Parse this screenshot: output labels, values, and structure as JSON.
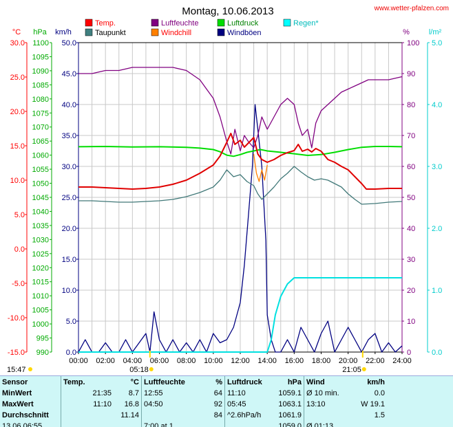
{
  "site": "www.wetter-pfalzen.com",
  "chart_data": {
    "type": "line",
    "title": "Montag, 10.06.2013",
    "x_labels": [
      "00:00",
      "02:00",
      "04:00",
      "06:00",
      "08:00",
      "10:00",
      "12:00",
      "14:00",
      "16:00",
      "18:00",
      "20:00",
      "22:00",
      "24:00"
    ],
    "axes": {
      "temp": {
        "unit": "°C",
        "color": "#ff0000",
        "range": [
          -15,
          30
        ],
        "ticks": [
          "30.0",
          "25.0",
          "20.0",
          "15.0",
          "10.0",
          "5.0",
          "0.0",
          "-5.0",
          "-10.0",
          "-15.0"
        ]
      },
      "pressure": {
        "unit": "hPa",
        "color": "#00aa00",
        "range": [
          990,
          1100
        ],
        "ticks": [
          "1100",
          "1095",
          "1090",
          "1085",
          "1080",
          "1075",
          "1070",
          "1065",
          "1060",
          "1055",
          "1050",
          "1045",
          "1040",
          "1035",
          "1030",
          "1025",
          "1020",
          "1015",
          "1010",
          "1005",
          "1000",
          "995",
          "990"
        ]
      },
      "wind": {
        "unit": "km/h",
        "color": "#000080",
        "range": [
          0,
          50
        ],
        "ticks": [
          "50.0",
          "45.0",
          "40.0",
          "35.0",
          "30.0",
          "25.0",
          "20.0",
          "15.0",
          "10.0",
          "5.0",
          "0.0"
        ]
      },
      "humidity": {
        "unit": "%",
        "color": "#800080",
        "range": [
          0,
          100
        ],
        "ticks": [
          "100",
          "90",
          "80",
          "70",
          "60",
          "50",
          "40",
          "30",
          "20",
          "10",
          "0"
        ]
      },
      "rain": {
        "unit": "l/m²",
        "color": "#00cccc",
        "range": [
          0,
          5
        ],
        "ticks": [
          "5.0",
          "4.0",
          "3.0",
          "2.0",
          "1.0",
          "0.0"
        ]
      }
    },
    "legend": [
      {
        "name": "Temp.",
        "color": "#ff0000",
        "label_color": "#ff0000"
      },
      {
        "name": "Luftfeuchte",
        "color": "#800080",
        "label_color": "#800080"
      },
      {
        "name": "Luftdruck",
        "color": "#00dd00",
        "label_color": "#008000"
      },
      {
        "name": "Regen*",
        "color": "#00ffff",
        "label_color": "#00bbbb"
      },
      {
        "name": "Taupunkt",
        "color": "#408080",
        "label_color": "#000000"
      },
      {
        "name": "Windchill",
        "color": "#ff8000",
        "label_color": "#ff0000"
      },
      {
        "name": "Windböen",
        "color": "#000080",
        "label_color": "#000080"
      }
    ],
    "series": [
      {
        "name": "Temp.",
        "axis": "temp",
        "color": "#e00000",
        "x": [
          0,
          1,
          2,
          3,
          4,
          5,
          6,
          7,
          8,
          9,
          10,
          10.5,
          11,
          11.3,
          11.6,
          12,
          12.3,
          12.6,
          13,
          13.3,
          13.6,
          14,
          14.5,
          15,
          15.5,
          16,
          16.3,
          16.6,
          17,
          17.3,
          17.6,
          18,
          18.5,
          19,
          19.5,
          20,
          20.5,
          21,
          21.35,
          22,
          23,
          24
        ],
        "y": [
          9.0,
          9.0,
          8.9,
          8.8,
          8.7,
          8.8,
          9.0,
          9.4,
          10.0,
          11.0,
          12.2,
          13.5,
          15.5,
          16.8,
          15.2,
          15.8,
          14.8,
          15.4,
          16.2,
          13.8,
          13.0,
          12.6,
          13.0,
          13.6,
          14.0,
          14.3,
          15.2,
          14.2,
          14.5,
          14.1,
          14.6,
          14.2,
          13.0,
          12.6,
          12.0,
          11.5,
          10.5,
          9.5,
          8.7,
          8.7,
          8.8,
          8.8
        ]
      },
      {
        "name": "Taupunkt",
        "axis": "temp",
        "color": "#407878",
        "x": [
          0,
          1,
          2,
          3,
          4,
          5,
          6,
          7,
          8,
          9,
          10,
          10.5,
          11,
          11.5,
          12,
          12.5,
          13,
          13.3,
          13.6,
          14,
          14.5,
          15,
          15.5,
          16,
          16.5,
          17,
          17.5,
          18,
          18.5,
          19,
          19.5,
          20,
          20.5,
          21,
          22,
          23,
          24
        ],
        "y": [
          7.0,
          7.0,
          6.9,
          6.8,
          6.8,
          6.9,
          7.0,
          7.2,
          7.6,
          8.2,
          9.0,
          10.0,
          11.5,
          10.5,
          10.8,
          9.8,
          9.2,
          8.0,
          7.2,
          8.0,
          9.0,
          10.2,
          11.0,
          12.0,
          11.2,
          10.5,
          10.0,
          10.2,
          10.0,
          9.5,
          9.0,
          8.0,
          7.2,
          6.5,
          6.6,
          6.8,
          6.9
        ]
      },
      {
        "name": "Windchill",
        "axis": "temp",
        "color": "#ff8000",
        "x": [
          13.0,
          13.2,
          13.4,
          13.6,
          13.8,
          14.0
        ],
        "y": [
          13.8,
          11.0,
          9.8,
          11.5,
          10.0,
          12.2
        ]
      },
      {
        "name": "Luftfeuchte",
        "axis": "humidity",
        "color": "#800080",
        "x": [
          0,
          1,
          2,
          3,
          4,
          5,
          6,
          7,
          8,
          9,
          9.5,
          10,
          10.5,
          11,
          11.3,
          11.6,
          12,
          12.3,
          12.6,
          13,
          13.3,
          13.6,
          14,
          14.5,
          15,
          15.5,
          16,
          16.3,
          16.6,
          17,
          17.3,
          17.6,
          18,
          18.5,
          19,
          19.5,
          20,
          20.5,
          21,
          21.5,
          22,
          23,
          24
        ],
        "y": [
          90,
          90,
          91,
          91,
          92,
          92,
          92,
          92,
          91,
          88,
          85,
          82,
          76,
          68,
          64,
          72,
          65,
          70,
          68,
          66,
          70,
          76,
          72,
          76,
          80,
          82,
          80,
          74,
          70,
          72,
          66,
          74,
          78,
          80,
          82,
          84,
          85,
          86,
          87,
          88,
          88,
          88,
          89
        ]
      },
      {
        "name": "Luftdruck",
        "axis": "pressure",
        "color": "#00dd00",
        "x": [
          0,
          2,
          4,
          6,
          8,
          9,
          10,
          10.5,
          11,
          11.5,
          12,
          12.5,
          13,
          13.5,
          14,
          15,
          16,
          17,
          18,
          19,
          20,
          21,
          22,
          23,
          24
        ],
        "y": [
          1063.0,
          1063.1,
          1062.9,
          1063.0,
          1062.8,
          1062.5,
          1062.0,
          1061.2,
          1060.0,
          1059.6,
          1060.2,
          1061.0,
          1061.5,
          1062.0,
          1061.5,
          1061.0,
          1060.5,
          1059.9,
          1060.2,
          1061.0,
          1062.0,
          1062.8,
          1063.1,
          1063.1,
          1063.0
        ]
      },
      {
        "name": "Regen*",
        "axis": "rain",
        "color": "#00e0e0",
        "x": [
          0,
          14.0,
          14.3,
          14.6,
          15.0,
          15.5,
          16.0,
          17.0,
          20.0,
          24.0
        ],
        "y": [
          0,
          0,
          0.2,
          0.6,
          0.9,
          1.1,
          1.2,
          1.2,
          1.2,
          1.2
        ]
      },
      {
        "name": "Windböen",
        "axis": "wind",
        "color": "#000080",
        "x": [
          0,
          0.5,
          1,
          1.5,
          2,
          2.5,
          3,
          3.5,
          4,
          4.5,
          5,
          5.3,
          5.6,
          6,
          6.5,
          7,
          7.5,
          8,
          8.5,
          9,
          9.5,
          10,
          10.5,
          11,
          11.5,
          12,
          12.3,
          12.6,
          12.9,
          13.1,
          13.3,
          13.6,
          13.9,
          14,
          14.3,
          14.6,
          15,
          15.5,
          16,
          16.5,
          17,
          17.5,
          18,
          18.5,
          19,
          19.5,
          20,
          20.5,
          21,
          21.5,
          22,
          22.5,
          23,
          23.5,
          24
        ],
        "y": [
          0,
          2,
          0,
          0,
          1.5,
          0,
          0,
          2,
          0,
          1.5,
          3,
          0,
          6.5,
          2,
          0,
          2,
          0,
          1.5,
          0,
          2,
          0,
          3,
          1.5,
          2,
          4,
          8,
          14,
          22,
          30,
          40,
          36,
          30,
          18,
          6,
          2,
          0,
          0,
          2,
          0,
          4,
          2,
          0,
          3,
          5,
          0,
          2,
          4,
          2,
          0,
          2,
          3,
          0,
          1.5,
          0,
          1
        ]
      }
    ],
    "sun_markers": [
      {
        "label": "15:47",
        "hour": null
      },
      {
        "label": "05:18",
        "hour": 5.3
      },
      {
        "label": "21:05",
        "hour": 21.08
      }
    ]
  },
  "stats": {
    "headers": [
      "Sensor",
      "Temp.",
      "°C",
      "Luftfeuchte",
      "%",
      "Luftdruck",
      "hPa",
      "Wind",
      "km/h"
    ],
    "rows": [
      {
        "label": "MinWert",
        "c": [
          "21:35",
          "8.7",
          "12:55",
          "64",
          "11:10",
          "1059.1",
          "Ø 10 min.",
          "0.0"
        ]
      },
      {
        "label": "MaxWert",
        "c": [
          "11:10",
          "16.8",
          "04:50",
          "92",
          "05:45",
          "1063.1",
          "13:10",
          "W 19.1"
        ]
      },
      {
        "label": "Durchschnitt",
        "c": [
          "",
          "11.14",
          "",
          "84",
          "^2.6hPa/h",
          "1061.9",
          "",
          "1.5"
        ]
      },
      {
        "label": "13.06 06:55",
        "c": [
          "",
          "",
          "7:00 at 1",
          "",
          "",
          "1059.0",
          "Ø 01:13",
          ""
        ]
      }
    ]
  }
}
